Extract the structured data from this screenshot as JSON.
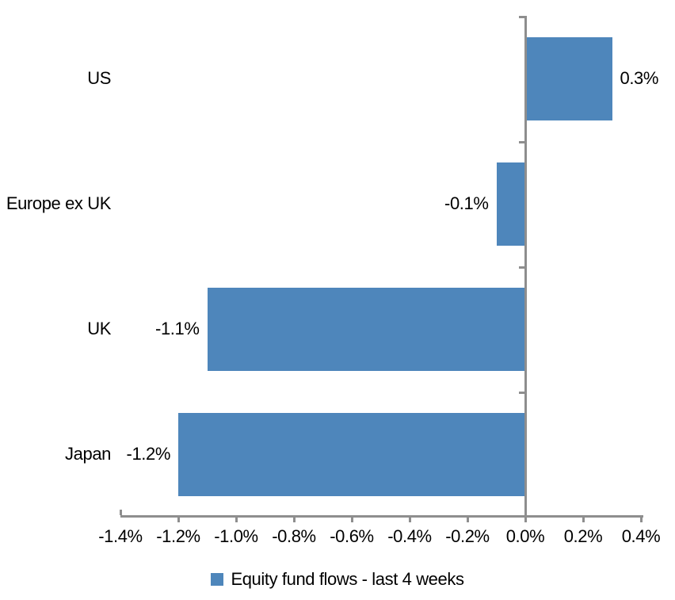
{
  "chart_data": {
    "type": "bar",
    "orientation": "horizontal",
    "categories": [
      "US",
      "Europe ex UK",
      "UK",
      "Japan"
    ],
    "series": [
      {
        "name": "Equity fund flows - last 4 weeks",
        "values": [
          0.3,
          -0.1,
          -1.1,
          -1.2
        ]
      }
    ],
    "data_labels": [
      "0.3%",
      "-0.1%",
      "-1.1%",
      "-1.2%"
    ],
    "value_unit": "percent",
    "xlim": [
      -1.4,
      0.4
    ],
    "x_tick_step": 0.2,
    "x_tick_labels": [
      "-1.4%",
      "-1.2%",
      "-1.0%",
      "-0.8%",
      "-0.6%",
      "-0.4%",
      "-0.2%",
      "0.0%",
      "0.2%",
      "0.4%"
    ],
    "grid": false,
    "legend": {
      "position": "bottom",
      "entries": [
        {
          "label": "Equity fund flows - last 4 weeks",
          "color": "#4E86BB"
        }
      ]
    },
    "colors": {
      "bar": "#4E86BB",
      "axis": "#8E8E8E",
      "text": "#000000",
      "background": "#FFFFFF"
    }
  }
}
